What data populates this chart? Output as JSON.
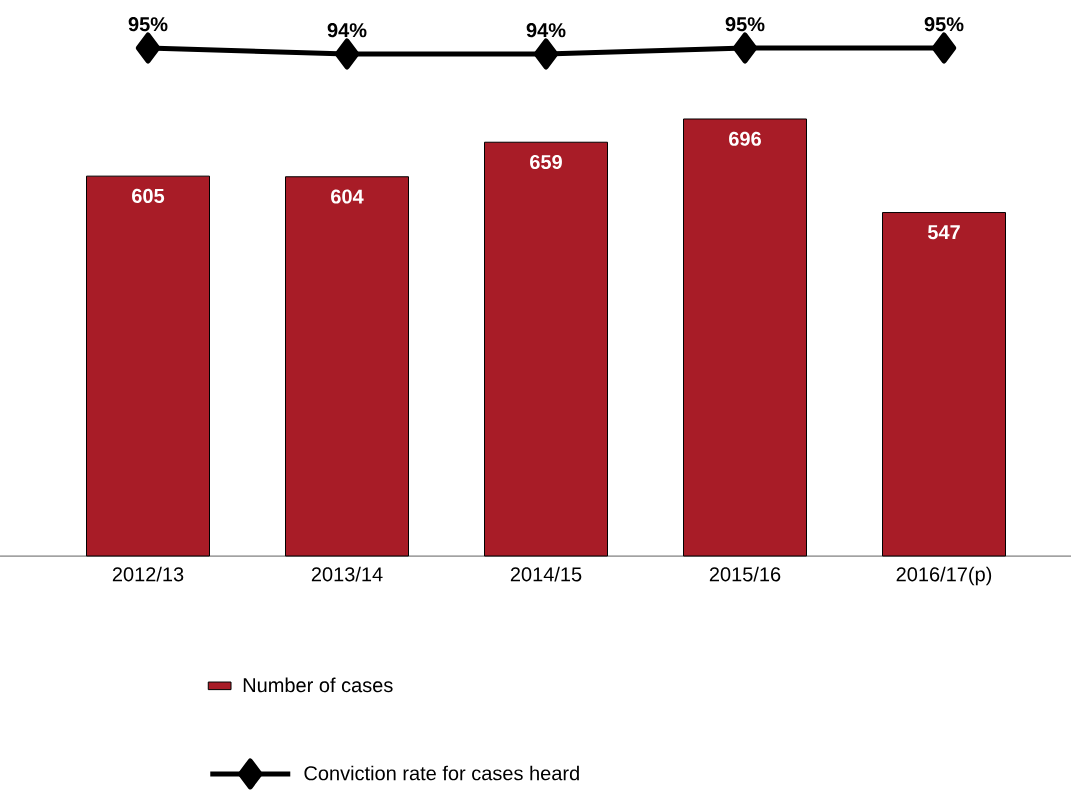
{
  "chart_data": [
    {
      "type": "bar",
      "categories": [
        "2012/13",
        "2013/14",
        "2014/15",
        "2015/16",
        "2016/17(p)"
      ],
      "series": [
        {
          "name": "Number of cases",
          "color": "#a81c27",
          "values": [
            605,
            604,
            659,
            696,
            547
          ],
          "value_labels": [
            "605",
            "604",
            "659",
            "696",
            "547"
          ]
        }
      ],
      "legend": "bottom",
      "tick_labels": "x",
      "grid": false
    },
    {
      "type": "line",
      "categories": [
        null,
        null,
        null,
        null,
        null
      ],
      "series": [
        {
          "name": "Conviction rate for cases heard",
          "color": "#000000",
          "marker": "diamond",
          "line_style": "solid",
          "values": [
            95,
            94,
            94,
            95,
            95
          ],
          "value_labels": [
            "95%",
            "94%",
            "94%",
            "95%",
            "95%"
          ]
        }
      ],
      "legend": "bottom",
      "tick_labels": false
    }
  ]
}
